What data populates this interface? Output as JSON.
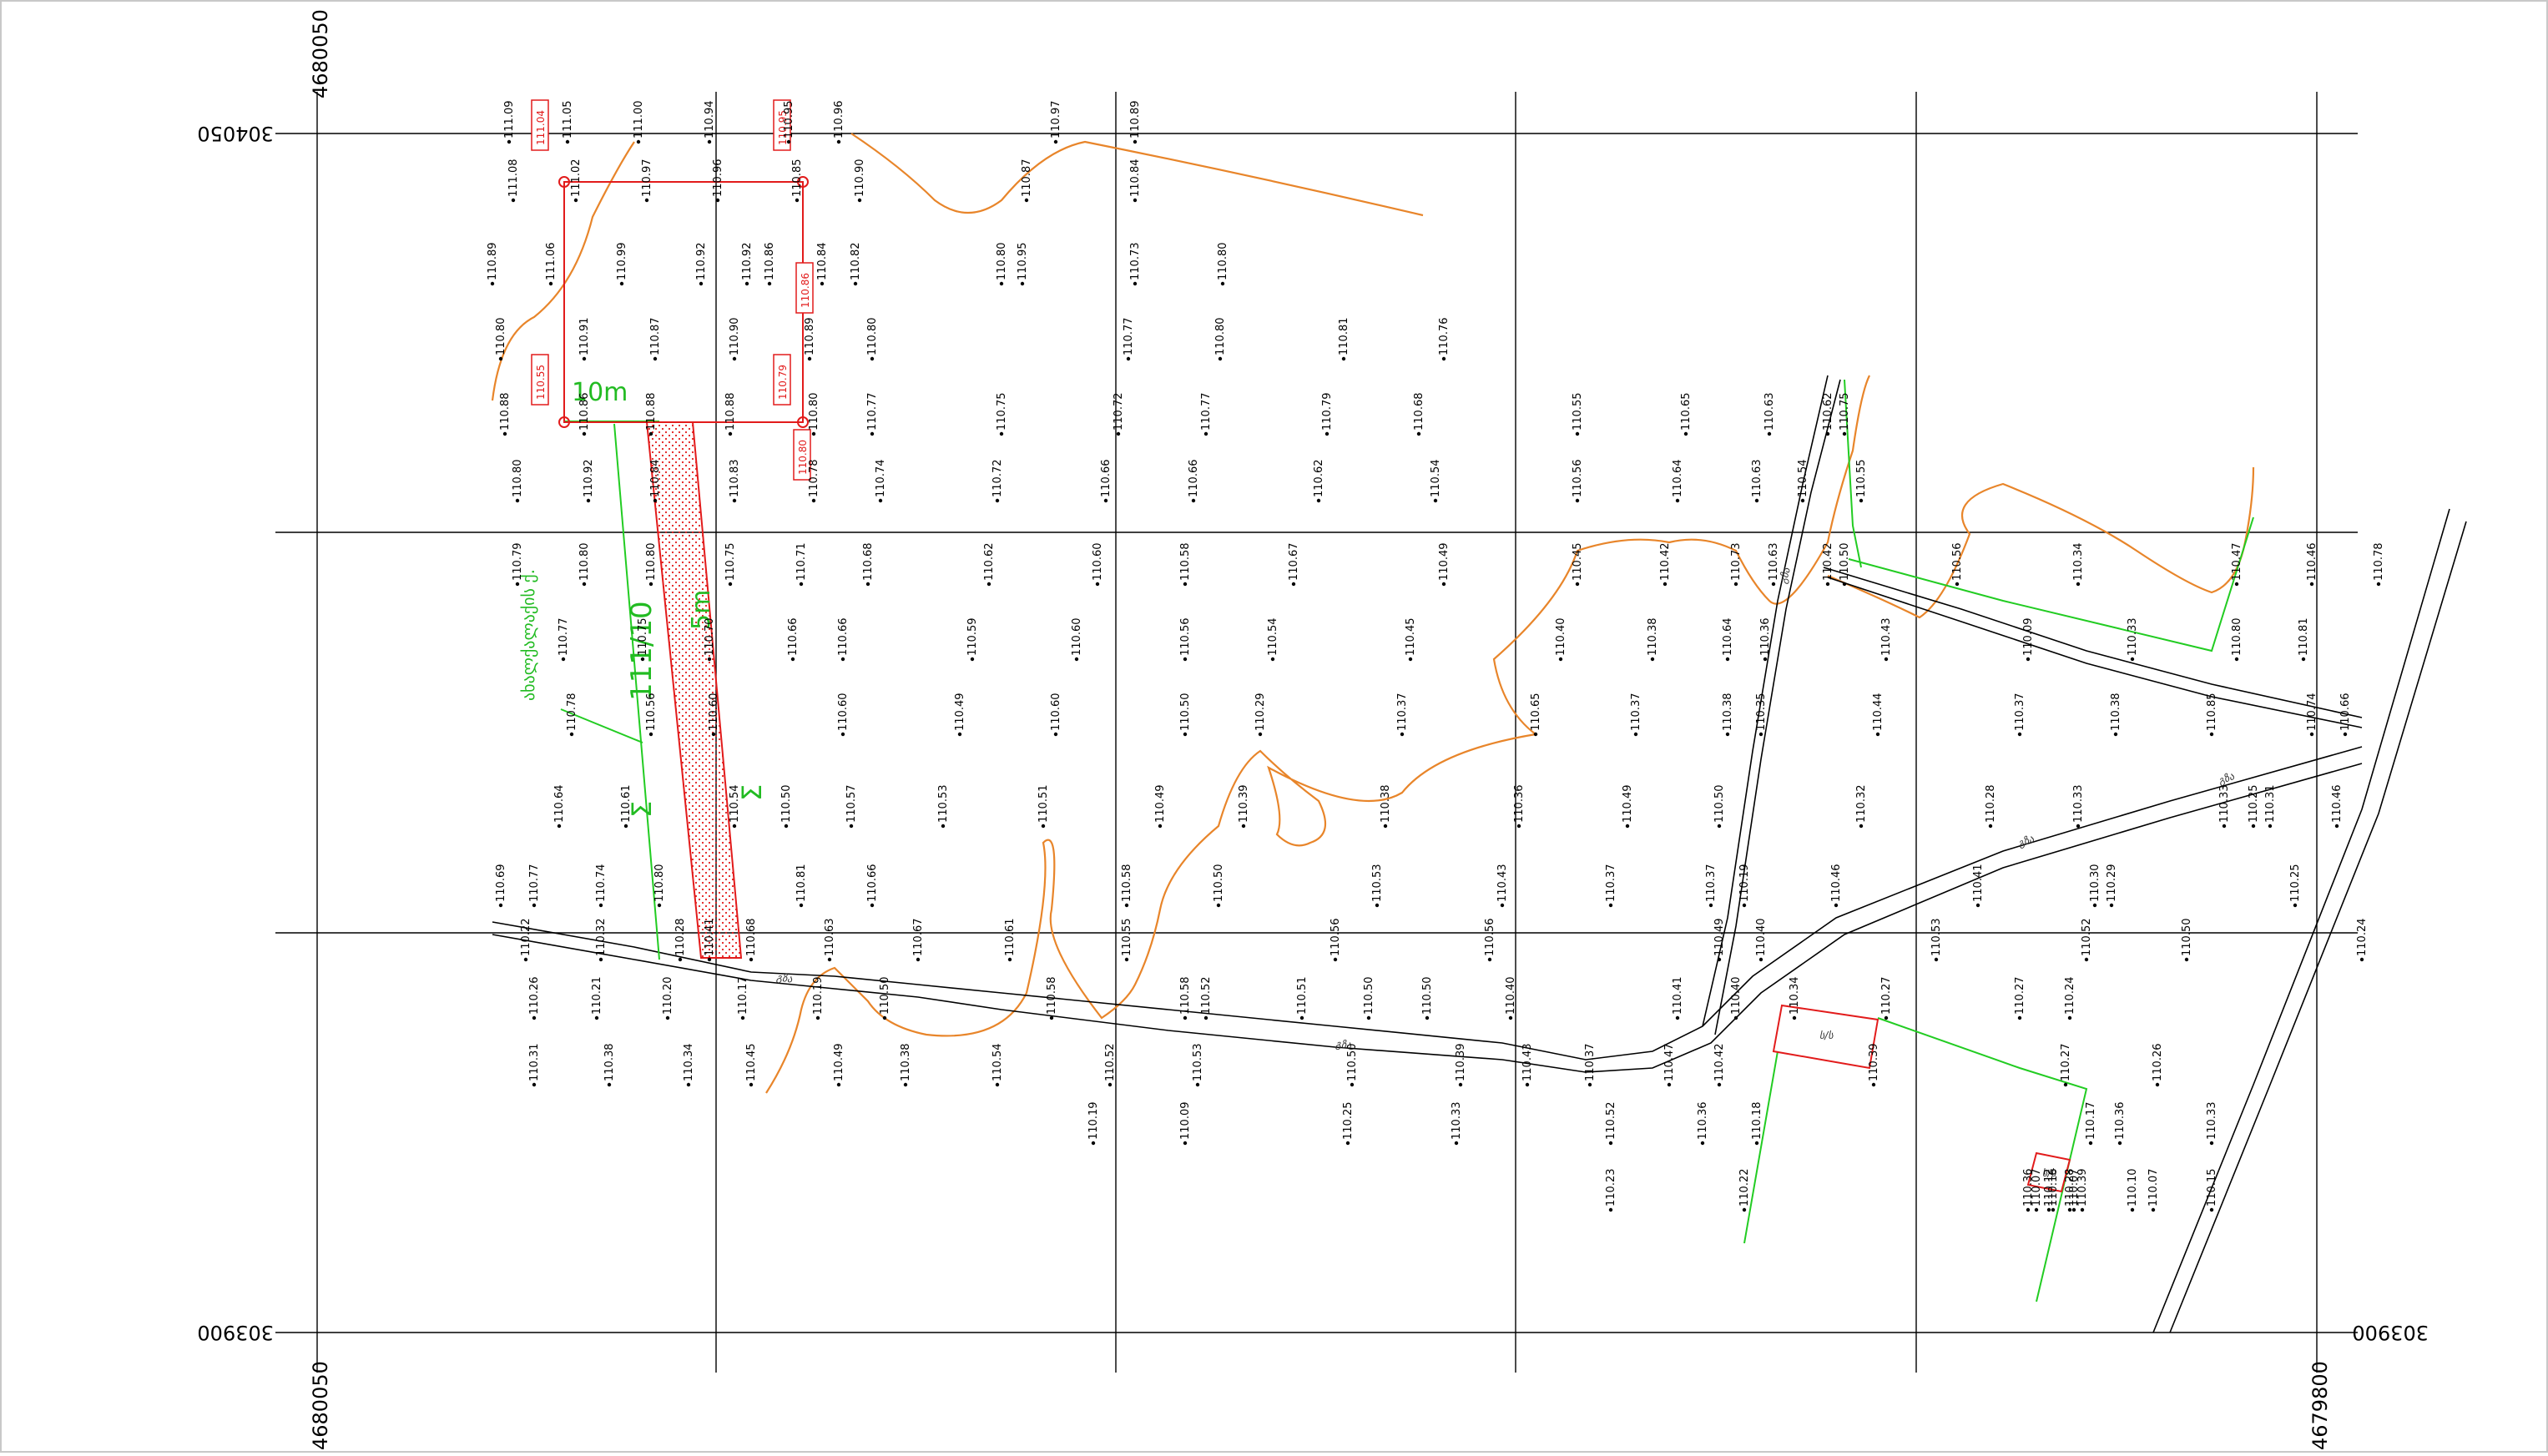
{
  "grid": {
    "top_left_easting": "4680050",
    "bottom_left_easting": "4680050",
    "bottom_right_easting": "4679800",
    "top_northing": "304050",
    "bottom_left_northing": "303900",
    "bottom_right_northing": "303900"
  },
  "scale_label": "10m",
  "parcel_dimensions": {
    "length": "111/10",
    "width": "5m"
  },
  "parcel_notes": [
    "Σ",
    "Σ"
  ],
  "vertical_note": "ახალქალაქის ქ.",
  "point_labels": [
    "111.04",
    "110.95",
    "110.86",
    "110.79",
    "110.55",
    "110.80"
  ],
  "spot_heights": [
    "111.09",
    "111.05",
    "111.00",
    "110.94",
    "110.95",
    "110.96",
    "110.97",
    "110.89",
    "111.08",
    "111.02",
    "110.97",
    "110.96",
    "110.85",
    "110.90",
    "110.87",
    "110.84",
    "110.89",
    "111.06",
    "110.99",
    "110.92",
    "110.92",
    "110.86",
    "110.84",
    "110.82",
    "110.80",
    "110.95",
    "110.73",
    "110.80",
    "110.80",
    "110.91",
    "110.87",
    "110.90",
    "110.89",
    "110.80",
    "110.77",
    "110.80",
    "110.81",
    "110.76",
    "110.88",
    "110.86",
    "110.88",
    "110.88",
    "110.80",
    "110.77",
    "110.75",
    "110.72",
    "110.77",
    "110.79",
    "110.68",
    "110.55",
    "110.65",
    "110.63",
    "110.62",
    "110.75",
    "110.80",
    "110.92",
    "110.84",
    "110.83",
    "110.78",
    "110.74",
    "110.72",
    "110.66",
    "110.66",
    "110.62",
    "110.54",
    "110.56",
    "110.64",
    "110.63",
    "110.54",
    "110.55",
    "110.79",
    "110.80",
    "110.80",
    "110.75",
    "110.71",
    "110.68",
    "110.62",
    "110.60",
    "110.58",
    "110.67",
    "110.49",
    "110.45",
    "110.42",
    "110.73",
    "110.63",
    "110.42",
    "110.50",
    "110.56",
    "110.34",
    "110.47",
    "110.46",
    "110.78",
    "110.77",
    "110.75",
    "110.70",
    "110.66",
    "110.66",
    "110.59",
    "110.60",
    "110.56",
    "110.54",
    "110.45",
    "110.40",
    "110.38",
    "110.64",
    "110.36",
    "110.43",
    "110.09",
    "110.33",
    "110.80",
    "110.81",
    "110.78",
    "110.56",
    "110.60",
    "110.60",
    "110.49",
    "110.60",
    "110.50",
    "110.29",
    "110.37",
    "110.65",
    "110.37",
    "110.38",
    "110.35",
    "110.44",
    "110.37",
    "110.38",
    "110.85",
    "110.74",
    "110.66",
    "110.64",
    "110.61",
    "110.54",
    "110.50",
    "110.57",
    "110.53",
    "110.51",
    "110.49",
    "110.39",
    "110.38",
    "110.36",
    "110.49",
    "110.50",
    "110.32",
    "110.28",
    "110.33",
    "110.33",
    "110.25",
    "110.31",
    "110.46",
    "110.69",
    "110.77",
    "110.74",
    "110.80",
    "110.81",
    "110.66",
    "110.58",
    "110.50",
    "110.53",
    "110.43",
    "110.37",
    "110.37",
    "110.19",
    "110.46",
    "110.41",
    "110.30",
    "110.29",
    "110.25",
    "110.22",
    "110.32",
    "110.28",
    "110.41",
    "110.68",
    "110.63",
    "110.67",
    "110.61",
    "110.55",
    "110.56",
    "110.56",
    "110.49",
    "110.40",
    "110.53",
    "110.52",
    "110.50",
    "110.24",
    "110.26",
    "110.21",
    "110.20",
    "110.17",
    "110.19",
    "110.50",
    "110.58",
    "110.58",
    "110.52",
    "110.51",
    "110.50",
    "110.50",
    "110.40",
    "110.41",
    "110.40",
    "110.34",
    "110.27",
    "110.27",
    "110.24",
    "110.31",
    "110.38",
    "110.34",
    "110.45",
    "110.49",
    "110.38",
    "110.54",
    "110.52",
    "110.53",
    "110.50",
    "110.39",
    "110.43",
    "110.37",
    "110.47",
    "110.42",
    "110.39",
    "110.27",
    "110.26",
    "110.19",
    "110.09",
    "110.25",
    "110.33",
    "110.52",
    "110.36",
    "110.18",
    "110.17",
    "110.36",
    "110.33",
    "110.23",
    "110.22",
    "110.07",
    "110.28",
    "110.12",
    "110.07",
    "110.16",
    "110.39",
    "110.36",
    "110.07",
    "110.10",
    "110.15",
    "110.25",
    "110.28",
    "110.24",
    "110.29",
    "110.20",
    "110.07",
    "110.30",
    "110.23",
    "110.18"
  ],
  "building_label_1": "ს/ს",
  "building_label_2": "ს/ს",
  "road_labels": [
    "გზა",
    "გზა",
    "გზა",
    "გზა",
    "გზა"
  ]
}
